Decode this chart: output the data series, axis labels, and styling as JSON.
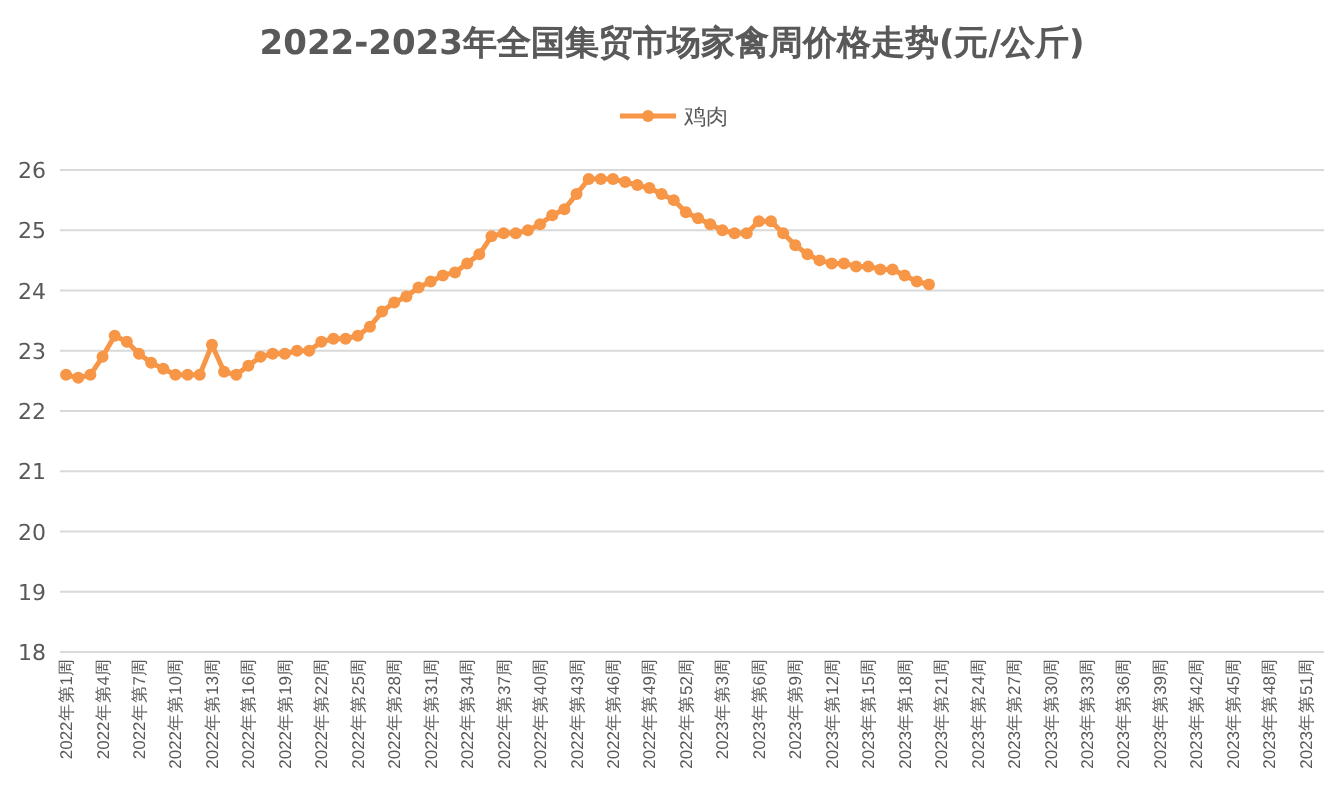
{
  "chart_data": {
    "type": "line",
    "title": "2022-2023年全国集贸市场家禽周价格走势(元/公斤)",
    "categories": [
      "2022年第1周",
      null,
      null,
      "2022年第4周",
      null,
      null,
      "2022年第7周",
      null,
      null,
      "2022年第10周",
      null,
      null,
      "2022年第13周",
      null,
      null,
      "2022年第16周",
      null,
      null,
      "2022年第19周",
      null,
      null,
      "2022年第22周",
      null,
      null,
      "2022年第25周",
      null,
      null,
      "2022年第28周",
      null,
      null,
      "2022年第31周",
      null,
      null,
      "2022年第34周",
      null,
      null,
      "2022年第37周",
      null,
      null,
      "2022年第40周",
      null,
      null,
      "2022年第43周",
      null,
      null,
      "2022年第46周",
      null,
      null,
      "2022年第49周",
      null,
      null,
      "2022年第52周",
      null,
      null,
      "2023年第3周",
      null,
      null,
      "2023年第6周",
      null,
      null,
      "2023年第9周",
      null,
      null,
      "2023年第12周",
      null,
      null,
      "2023年第15周",
      null,
      null,
      "2023年第18周",
      null,
      null,
      "2023年第21周",
      null,
      null,
      "2023年第24周",
      null,
      null,
      "2023年第27周",
      null,
      null,
      "2023年第30周",
      null,
      null,
      "2023年第33周",
      null,
      null,
      "2023年第36周",
      null,
      null,
      "2023年第39周",
      null,
      null,
      "2023年第42周",
      null,
      null,
      "2023年第45周",
      null,
      null,
      "2023年第48周",
      null,
      null,
      "2023年第51周",
      null
    ],
    "series": [
      {
        "name": "鸡肉",
        "color": "#f79646",
        "values": [
          22.6,
          22.55,
          22.6,
          22.9,
          23.25,
          23.15,
          22.95,
          22.8,
          22.7,
          22.6,
          22.6,
          22.6,
          23.1,
          22.65,
          22.6,
          22.75,
          22.9,
          22.95,
          22.95,
          23.0,
          23.0,
          23.15,
          23.2,
          23.2,
          23.25,
          23.4,
          23.65,
          23.8,
          23.9,
          24.05,
          24.15,
          24.25,
          24.3,
          24.45,
          24.6,
          24.9,
          24.95,
          24.95,
          25.0,
          25.1,
          25.25,
          25.35,
          25.6,
          25.85,
          25.85,
          25.85,
          25.8,
          25.75,
          25.7,
          25.6,
          25.5,
          25.3,
          25.2,
          25.1,
          25.0,
          24.95,
          24.95,
          25.15,
          25.15,
          24.95,
          24.75,
          24.6,
          24.5,
          24.45,
          24.45,
          24.4,
          24.4,
          24.35,
          24.35,
          24.25,
          24.15,
          24.1,
          null,
          null,
          null,
          null,
          null,
          null,
          null,
          null,
          null,
          null,
          null,
          null,
          null,
          null,
          null,
          null,
          null,
          null,
          null,
          null,
          null,
          null,
          null,
          null,
          null,
          null,
          null,
          null,
          null,
          null,
          null,
          null
        ]
      }
    ],
    "ylim": [
      18,
      26
    ],
    "yticks": [
      18,
      19,
      20,
      21,
      22,
      23,
      24,
      25,
      26
    ],
    "grid": "y",
    "legend": "top",
    "marker": "circle",
    "line_style": "solid"
  }
}
